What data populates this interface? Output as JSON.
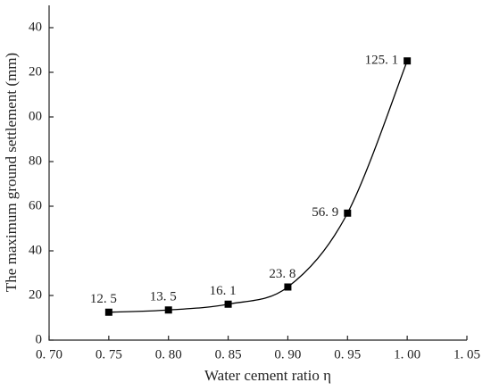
{
  "chart_data": {
    "type": "line",
    "x_label": "Water cement ratio η",
    "y_label": "The maximum ground settlement (mm)",
    "series": [
      {
        "color": "#000000",
        "x": [
          0.75,
          0.8,
          0.85,
          0.9,
          0.95,
          1.0
        ],
        "values": [
          12.5,
          13.5,
          16.1,
          23.8,
          56.9,
          125.1
        ],
        "value_labels": [
          "12. 5",
          "13. 5",
          "16. 1",
          "23. 8",
          "56. 9",
          "125. 1"
        ]
      }
    ],
    "xlim": [
      0.7,
      1.05
    ],
    "xticks": [
      {
        "value": 0.7,
        "label": "0. 70"
      },
      {
        "value": 0.75,
        "label": "0. 75"
      },
      {
        "value": 0.8,
        "label": "0. 80"
      },
      {
        "value": 0.85,
        "label": "0. 85"
      },
      {
        "value": 0.9,
        "label": "0. 90"
      },
      {
        "value": 0.95,
        "label": "0. 95"
      },
      {
        "value": 1.0,
        "label": "1. 00"
      },
      {
        "value": 1.05,
        "label": "1. 05"
      }
    ],
    "ylim": [
      0,
      150
    ],
    "yticks": [
      0,
      20,
      40,
      60,
      80,
      {
        "value": 100,
        "label": "00"
      },
      {
        "value": 120,
        "label": "20"
      },
      {
        "value": 140,
        "label": "40"
      }
    ]
  }
}
